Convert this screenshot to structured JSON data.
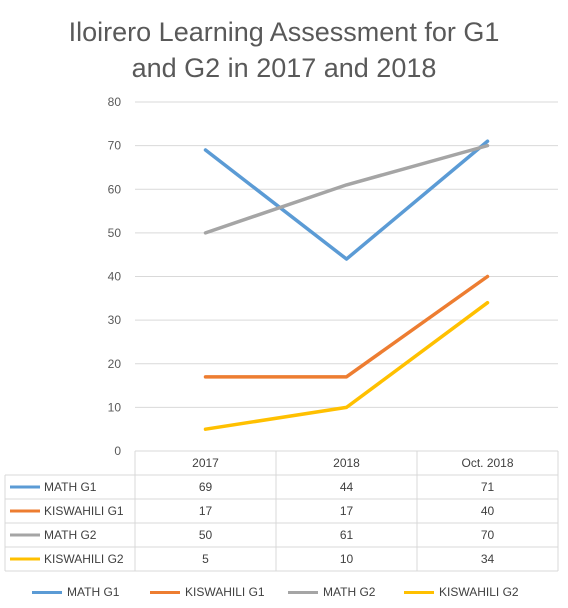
{
  "chart_data": {
    "type": "line",
    "title": "Iloirero Learning Assessment for G1 and G2 in 2017 and 2018",
    "title_lines": [
      "Iloirero Learning Assessment for G1",
      "and G2 in 2017 and 2018"
    ],
    "categories": [
      "2017",
      "2018",
      "Oct. 2018"
    ],
    "ylim": [
      0,
      80
    ],
    "yticks": [
      "0",
      "10",
      "20",
      "30",
      "40",
      "50",
      "60",
      "70",
      "80"
    ],
    "grid": true,
    "legend": "bottom",
    "data_table": true,
    "series": [
      {
        "name": "MATH G1",
        "color": "#5B9BD5",
        "values": [
          69,
          44,
          71
        ]
      },
      {
        "name": "KISWAHILI G1",
        "color": "#ED7D31",
        "values": [
          17,
          17,
          40
        ]
      },
      {
        "name": "MATH G2",
        "color": "#A5A5A5",
        "values": [
          50,
          61,
          70
        ]
      },
      {
        "name": "KISWAHILI G2",
        "color": "#FFC000",
        "values": [
          5,
          10,
          34
        ]
      }
    ]
  }
}
